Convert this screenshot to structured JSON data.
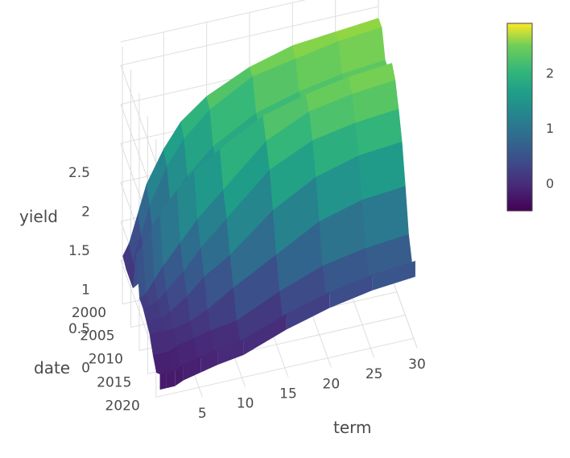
{
  "chart_data": {
    "type": "surface",
    "title": "",
    "axes": {
      "x": {
        "label": "term",
        "ticks": [
          "5",
          "10",
          "15",
          "20",
          "25",
          "30"
        ],
        "range": [
          0,
          30
        ]
      },
      "y": {
        "label": "date",
        "ticks": [
          "2000",
          "2005",
          "2010",
          "2015",
          "2020"
        ],
        "range": [
          1999,
          2022
        ]
      },
      "z": {
        "label": "yield",
        "ticks": [
          "0",
          "0.5",
          "1",
          "1.5",
          "2",
          "2.5"
        ],
        "range": [
          -0.5,
          2.8
        ]
      }
    },
    "colorbar": {
      "colorscale": "Viridis",
      "ticks": [
        "0",
        "1",
        "2"
      ],
      "cmin": -0.5,
      "cmax": 2.9
    },
    "grid": true,
    "terms": [
      0.25,
      1,
      2,
      3,
      5,
      7,
      10,
      15,
      20,
      25,
      30
    ],
    "surface_rows": [
      {
        "date": 1999,
        "yields": [
          0.05,
          0.2,
          0.55,
          0.9,
          1.3,
          1.6,
          1.85,
          2.1,
          2.25,
          2.3,
          2.35
        ]
      },
      {
        "date": 2001,
        "yields": [
          0.0,
          0.1,
          0.4,
          0.75,
          1.2,
          1.5,
          1.8,
          2.1,
          2.2,
          2.3,
          2.35
        ]
      },
      {
        "date": 2003,
        "yields": [
          0.0,
          0.05,
          0.2,
          0.45,
          0.85,
          1.15,
          1.45,
          1.75,
          1.9,
          2.0,
          2.05
        ]
      },
      {
        "date": 2005,
        "yields": [
          0.0,
          0.05,
          0.25,
          0.45,
          0.8,
          1.05,
          1.35,
          1.7,
          1.9,
          2.0,
          2.05
        ]
      },
      {
        "date": 2007,
        "yields": [
          0.55,
          0.65,
          0.85,
          1.0,
          1.25,
          1.45,
          1.65,
          1.95,
          2.1,
          2.2,
          2.25
        ]
      },
      {
        "date": 2009,
        "yields": [
          0.1,
          0.15,
          0.3,
          0.45,
          0.7,
          0.95,
          1.25,
          1.75,
          2.0,
          2.1,
          2.15
        ]
      },
      {
        "date": 2011,
        "yields": [
          0.1,
          0.1,
          0.15,
          0.25,
          0.45,
          0.7,
          1.0,
          1.5,
          1.75,
          1.85,
          1.9
        ]
      },
      {
        "date": 2013,
        "yields": [
          0.05,
          0.05,
          0.05,
          0.1,
          0.25,
          0.45,
          0.65,
          1.1,
          1.4,
          1.55,
          1.6
        ]
      },
      {
        "date": 2015,
        "yields": [
          0.0,
          0.0,
          0.0,
          0.0,
          0.05,
          0.15,
          0.35,
          0.65,
          0.95,
          1.1,
          1.15
        ]
      },
      {
        "date": 2017,
        "yields": [
          -0.15,
          -0.15,
          -0.15,
          -0.1,
          -0.05,
          0.0,
          0.05,
          0.3,
          0.5,
          0.6,
          0.65
        ]
      },
      {
        "date": 2019,
        "yields": [
          -0.25,
          -0.25,
          -0.25,
          -0.25,
          -0.2,
          -0.15,
          -0.1,
          0.05,
          0.25,
          0.35,
          0.4
        ]
      },
      {
        "date": 2021,
        "yields": [
          -0.15,
          -0.15,
          -0.15,
          -0.1,
          -0.05,
          0.0,
          0.05,
          0.25,
          0.4,
          0.5,
          0.55
        ]
      }
    ]
  }
}
